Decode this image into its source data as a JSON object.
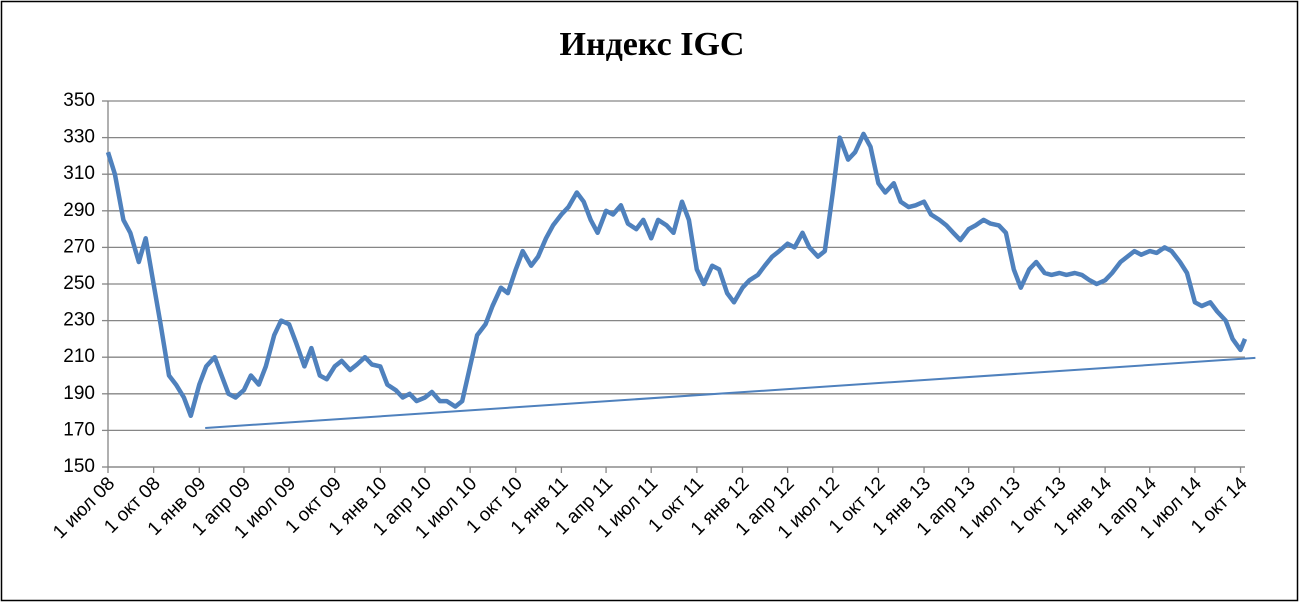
{
  "chart_data": {
    "type": "line",
    "title": "Индекс IGC",
    "xlim": [
      "2008-07-01",
      "2014-10-10"
    ],
    "xticks": [
      {
        "value": "2008-07-01",
        "label": "1 июл 08"
      },
      {
        "value": "2008-10-01",
        "label": "1 окт 08"
      },
      {
        "value": "2009-01-01",
        "label": "1 янв 09"
      },
      {
        "value": "2009-04-01",
        "label": "1 апр 09"
      },
      {
        "value": "2009-07-01",
        "label": "1 июл 09"
      },
      {
        "value": "2009-10-01",
        "label": "1 окт 09"
      },
      {
        "value": "2010-01-01",
        "label": "1 янв 10"
      },
      {
        "value": "2010-04-01",
        "label": "1 апр 10"
      },
      {
        "value": "2010-07-01",
        "label": "1 июл 10"
      },
      {
        "value": "2010-10-01",
        "label": "1 окт 10"
      },
      {
        "value": "2011-01-01",
        "label": "1 янв 11"
      },
      {
        "value": "2011-04-01",
        "label": "1 апр 11"
      },
      {
        "value": "2011-07-01",
        "label": "1 июл 11"
      },
      {
        "value": "2011-10-01",
        "label": "1 окт 11"
      },
      {
        "value": "2012-01-01",
        "label": "1 янв 12"
      },
      {
        "value": "2012-04-01",
        "label": "1 апр 12"
      },
      {
        "value": "2012-07-01",
        "label": "1 июл 12"
      },
      {
        "value": "2012-10-01",
        "label": "1 окт 12"
      },
      {
        "value": "2013-01-01",
        "label": "1 янв 13"
      },
      {
        "value": "2013-04-01",
        "label": "1 апр 13"
      },
      {
        "value": "2013-07-01",
        "label": "1 июл 13"
      },
      {
        "value": "2013-10-01",
        "label": "1 окт 13"
      },
      {
        "value": "2014-01-01",
        "label": "1 янв 14"
      },
      {
        "value": "2014-04-01",
        "label": "1 апр 14"
      },
      {
        "value": "2014-07-01",
        "label": "1 июл 14"
      },
      {
        "value": "2014-10-01",
        "label": "1 окт 14"
      }
    ],
    "ylim": [
      150,
      350
    ],
    "yticks": [
      150,
      170,
      190,
      210,
      230,
      250,
      270,
      290,
      310,
      330,
      350
    ],
    "grid": true,
    "series": [
      {
        "color": "#4f81bd",
        "x": [
          "2008-07-01",
          "2008-07-15",
          "2008-08-01",
          "2008-08-15",
          "2008-09-01",
          "2008-09-15",
          "2008-10-01",
          "2008-10-15",
          "2008-11-01",
          "2008-11-15",
          "2008-12-01",
          "2008-12-15",
          "2009-01-01",
          "2009-01-15",
          "2009-02-01",
          "2009-02-15",
          "2009-03-01",
          "2009-03-15",
          "2009-04-01",
          "2009-04-15",
          "2009-05-01",
          "2009-05-15",
          "2009-06-01",
          "2009-06-15",
          "2009-07-01",
          "2009-07-15",
          "2009-08-01",
          "2009-08-15",
          "2009-09-01",
          "2009-09-15",
          "2009-10-01",
          "2009-10-15",
          "2009-11-01",
          "2009-11-15",
          "2009-12-01",
          "2009-12-15",
          "2010-01-01",
          "2010-01-15",
          "2010-02-01",
          "2010-02-15",
          "2010-03-01",
          "2010-03-15",
          "2010-04-01",
          "2010-04-15",
          "2010-05-01",
          "2010-05-15",
          "2010-06-01",
          "2010-06-15",
          "2010-07-01",
          "2010-07-15",
          "2010-08-01",
          "2010-08-15",
          "2010-09-01",
          "2010-09-15",
          "2010-10-01",
          "2010-10-15",
          "2010-11-01",
          "2010-11-15",
          "2010-12-01",
          "2010-12-15",
          "2011-01-01",
          "2011-01-15",
          "2011-02-01",
          "2011-02-15",
          "2011-03-01",
          "2011-03-15",
          "2011-04-01",
          "2011-04-15",
          "2011-05-01",
          "2011-05-15",
          "2011-06-01",
          "2011-06-15",
          "2011-07-01",
          "2011-07-15",
          "2011-08-01",
          "2011-08-15",
          "2011-09-01",
          "2011-09-15",
          "2011-10-01",
          "2011-10-15",
          "2011-11-01",
          "2011-11-15",
          "2011-12-01",
          "2011-12-15",
          "2012-01-01",
          "2012-01-15",
          "2012-02-01",
          "2012-02-15",
          "2012-03-01",
          "2012-03-15",
          "2012-04-01",
          "2012-04-15",
          "2012-05-01",
          "2012-05-15",
          "2012-06-01",
          "2012-06-15",
          "2012-07-01",
          "2012-07-15",
          "2012-08-01",
          "2012-08-15",
          "2012-09-01",
          "2012-09-15",
          "2012-10-01",
          "2012-10-15",
          "2012-11-01",
          "2012-11-15",
          "2012-12-01",
          "2012-12-15",
          "2013-01-01",
          "2013-01-15",
          "2013-02-01",
          "2013-02-15",
          "2013-03-01",
          "2013-03-15",
          "2013-04-01",
          "2013-04-15",
          "2013-05-01",
          "2013-05-15",
          "2013-06-01",
          "2013-06-15",
          "2013-07-01",
          "2013-07-15",
          "2013-08-01",
          "2013-08-15",
          "2013-09-01",
          "2013-09-15",
          "2013-10-01",
          "2013-10-15",
          "2013-11-01",
          "2013-11-15",
          "2013-12-01",
          "2013-12-15",
          "2014-01-01",
          "2014-01-15",
          "2014-02-01",
          "2014-02-15",
          "2014-03-01",
          "2014-03-15",
          "2014-04-01",
          "2014-04-15",
          "2014-05-01",
          "2014-05-15",
          "2014-06-01",
          "2014-06-15",
          "2014-07-01",
          "2014-07-15",
          "2014-08-01",
          "2014-08-15",
          "2014-09-01",
          "2014-09-15",
          "2014-10-01",
          "2014-10-10"
        ],
        "values": [
          322,
          310,
          285,
          278,
          262,
          275,
          250,
          228,
          200,
          195,
          188,
          178,
          195,
          205,
          210,
          200,
          190,
          188,
          192,
          200,
          195,
          205,
          222,
          230,
          228,
          218,
          205,
          215,
          200,
          198,
          205,
          208,
          203,
          206,
          210,
          206,
          205,
          195,
          192,
          188,
          190,
          186,
          188,
          191,
          186,
          186,
          183,
          186,
          205,
          222,
          228,
          238,
          248,
          245,
          258,
          268,
          260,
          265,
          275,
          282,
          288,
          292,
          300,
          295,
          285,
          278,
          290,
          288,
          293,
          283,
          280,
          285,
          275,
          285,
          282,
          278,
          295,
          285,
          258,
          250,
          260,
          258,
          245,
          240,
          248,
          252,
          255,
          260,
          265,
          268,
          272,
          270,
          278,
          270,
          265,
          268,
          300,
          330,
          318,
          322,
          332,
          325,
          305,
          300,
          305,
          295,
          292,
          293,
          295,
          288,
          285,
          282,
          278,
          274,
          280,
          282,
          285,
          283,
          282,
          278,
          258,
          248,
          258,
          262,
          256,
          255,
          256,
          255,
          256,
          255,
          252,
          250,
          252,
          256,
          262,
          265,
          268,
          266,
          268,
          267,
          270,
          268,
          262,
          256,
          240,
          238,
          240,
          235,
          230,
          220,
          214,
          220
        ]
      },
      {
        "color": "#4f81bd",
        "x": [
          "2009-01-13",
          "2014-10-31"
        ],
        "values": [
          171.3,
          209.6
        ]
      }
    ]
  }
}
